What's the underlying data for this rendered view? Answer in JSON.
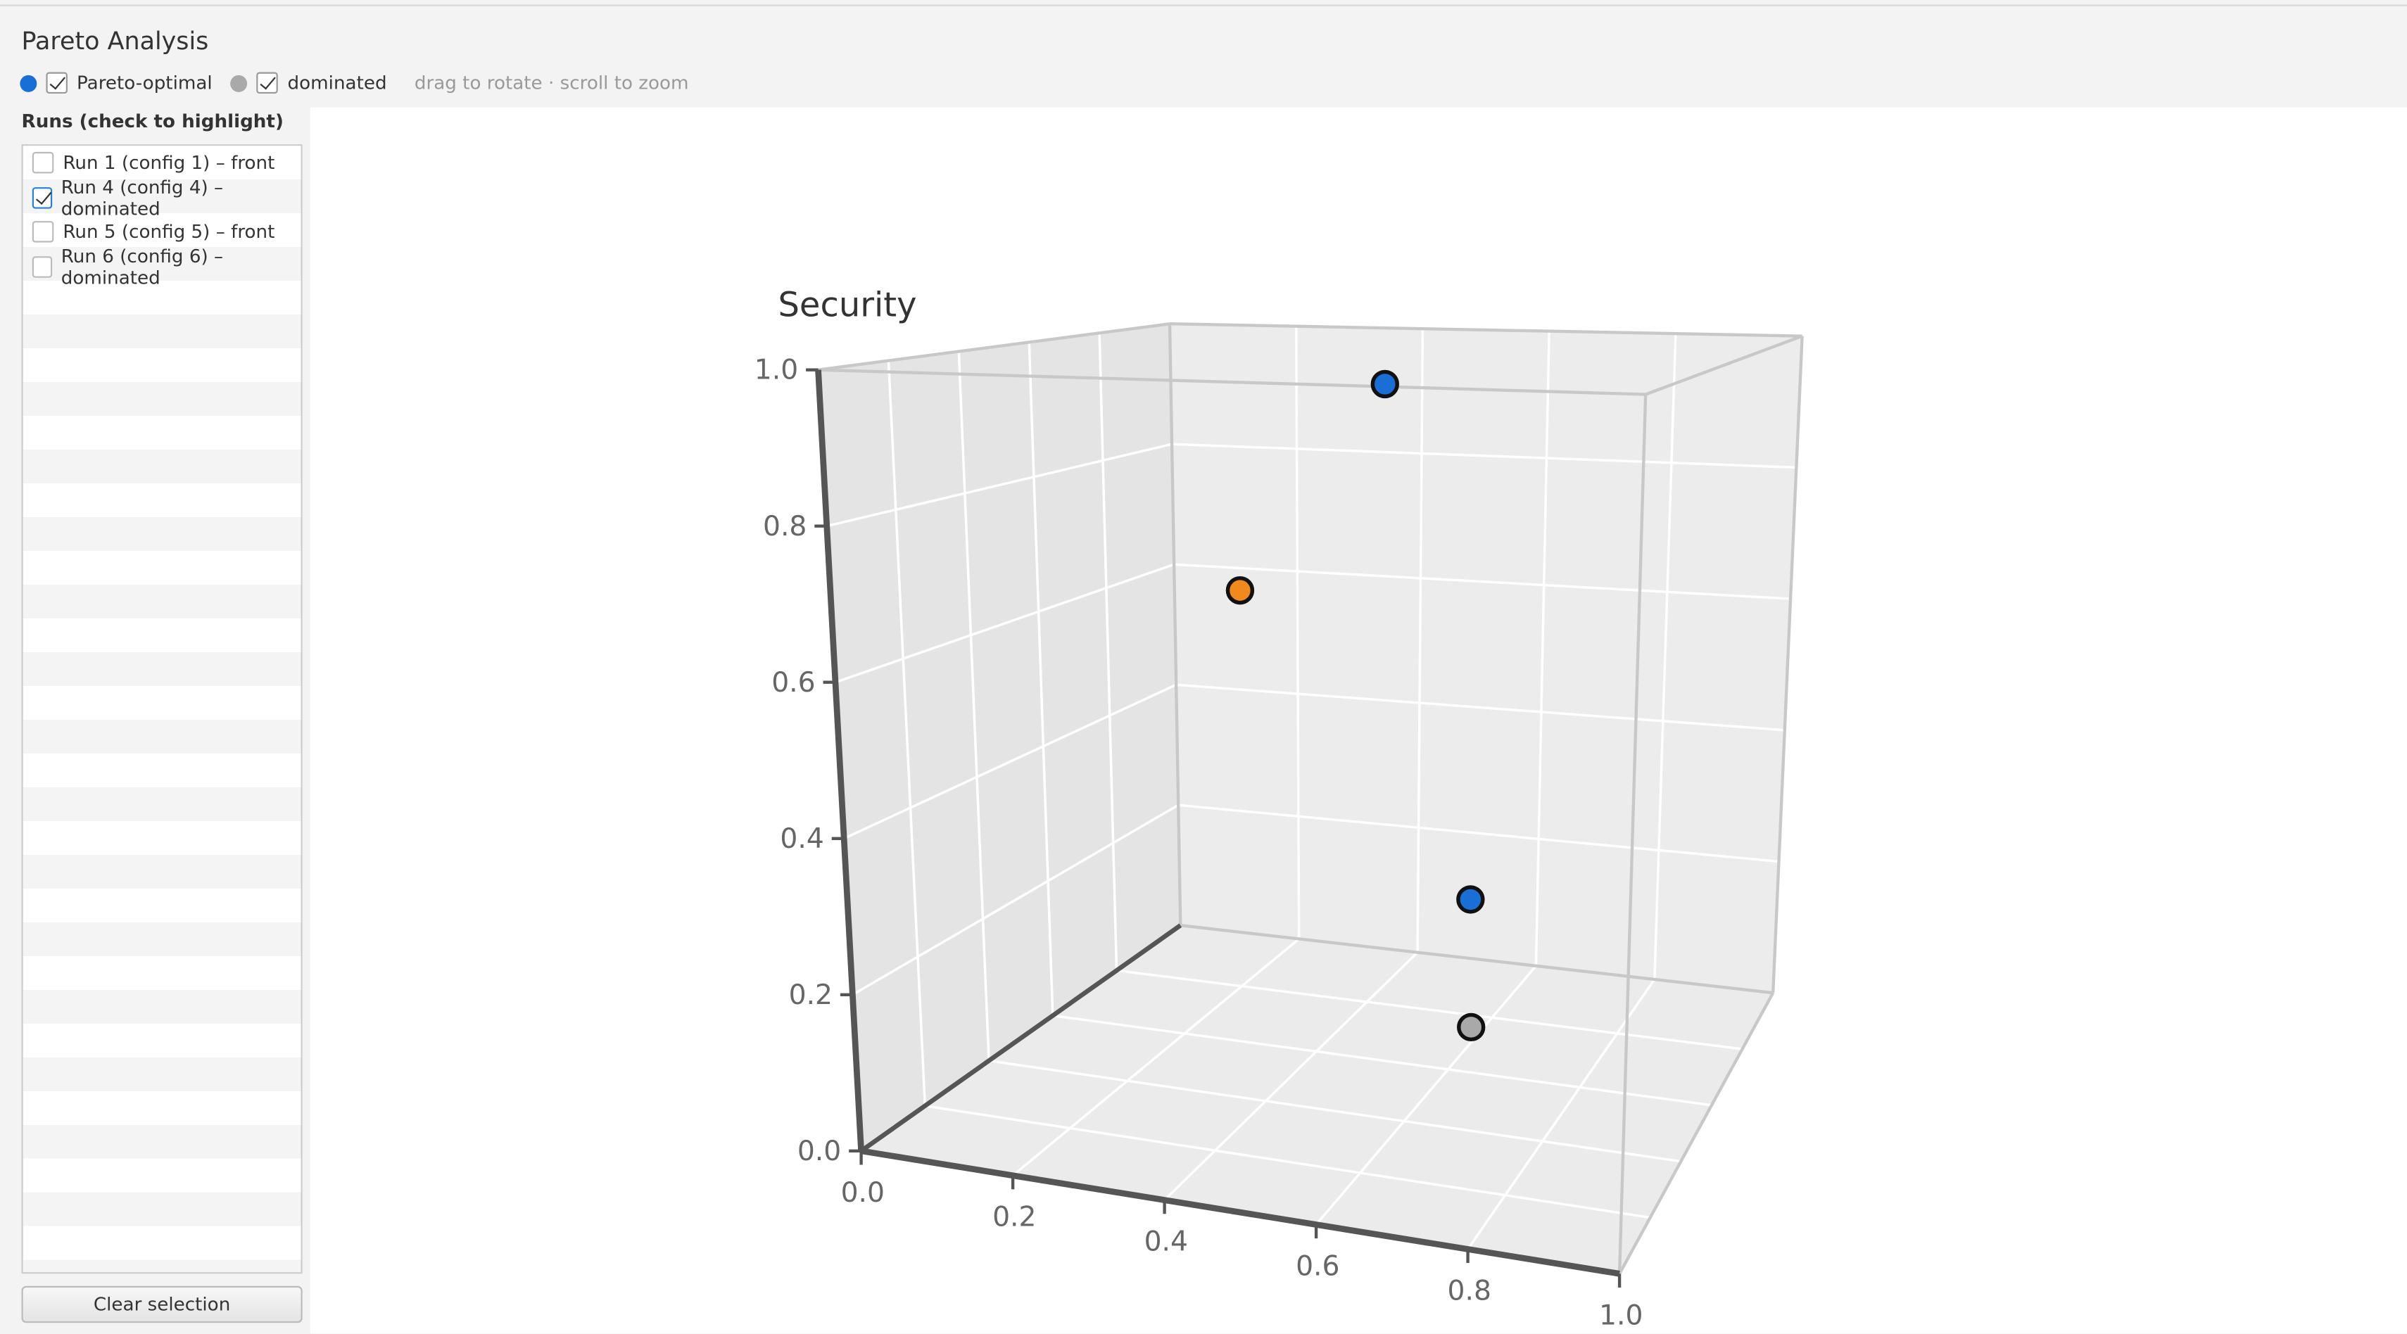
{
  "header": {
    "title": "Pareto Analysis",
    "hint": "drag to rotate · scroll to zoom"
  },
  "runs": {
    "title": "Runs (check to highlight)",
    "items": [
      {
        "label": "Run 1 (config 1) – front",
        "checked": false
      },
      {
        "label": "Run 4 (config 4) – dominated",
        "checked": true
      },
      {
        "label": "Run 5 (config 5) – front",
        "checked": false
      },
      {
        "label": "Run 6 (config 6) – dominated",
        "checked": false
      }
    ],
    "button": "Clear selection"
  },
  "chart_data": {
    "type": "scatter3d",
    "zlabel": "Security",
    "xlim": [
      0,
      1
    ],
    "ylim": [
      0,
      1
    ],
    "zlim": [
      0,
      1
    ],
    "xticks": [
      {
        "value": 0,
        "label": "0.0"
      },
      {
        "value": 0.2,
        "label": "0.2"
      },
      {
        "value": 0.4,
        "label": "0.4"
      },
      {
        "value": 0.6,
        "label": "0.6"
      },
      {
        "value": 0.8,
        "label": "0.8"
      },
      {
        "value": 1,
        "label": "1.0"
      }
    ],
    "zticks": [
      {
        "value": 0,
        "label": "0.0"
      },
      {
        "value": 0.2,
        "label": "0.2"
      },
      {
        "value": 0.4,
        "label": "0.4"
      },
      {
        "value": 0.6,
        "label": "0.6"
      },
      {
        "value": 0.8,
        "label": "0.8"
      },
      {
        "value": 1,
        "label": "1.0"
      }
    ],
    "grid": true,
    "series": [
      {
        "name": "Pareto-optimal",
        "color": "#1a6fd6",
        "visible": true,
        "x": [
          0.6,
          0.72
        ],
        "y": [
          0.3,
          0.3
        ],
        "z": [
          0.98,
          0.33
        ]
      },
      {
        "name": "dominated",
        "color": "#a9a9a9",
        "visible": true,
        "x": [
          0.25,
          0.75
        ],
        "y": [
          0.7,
          0.2
        ],
        "z": [
          0.63,
          0.2
        ],
        "colors": [
          "#f08a1c",
          "#a9a9a9"
        ]
      }
    ]
  }
}
